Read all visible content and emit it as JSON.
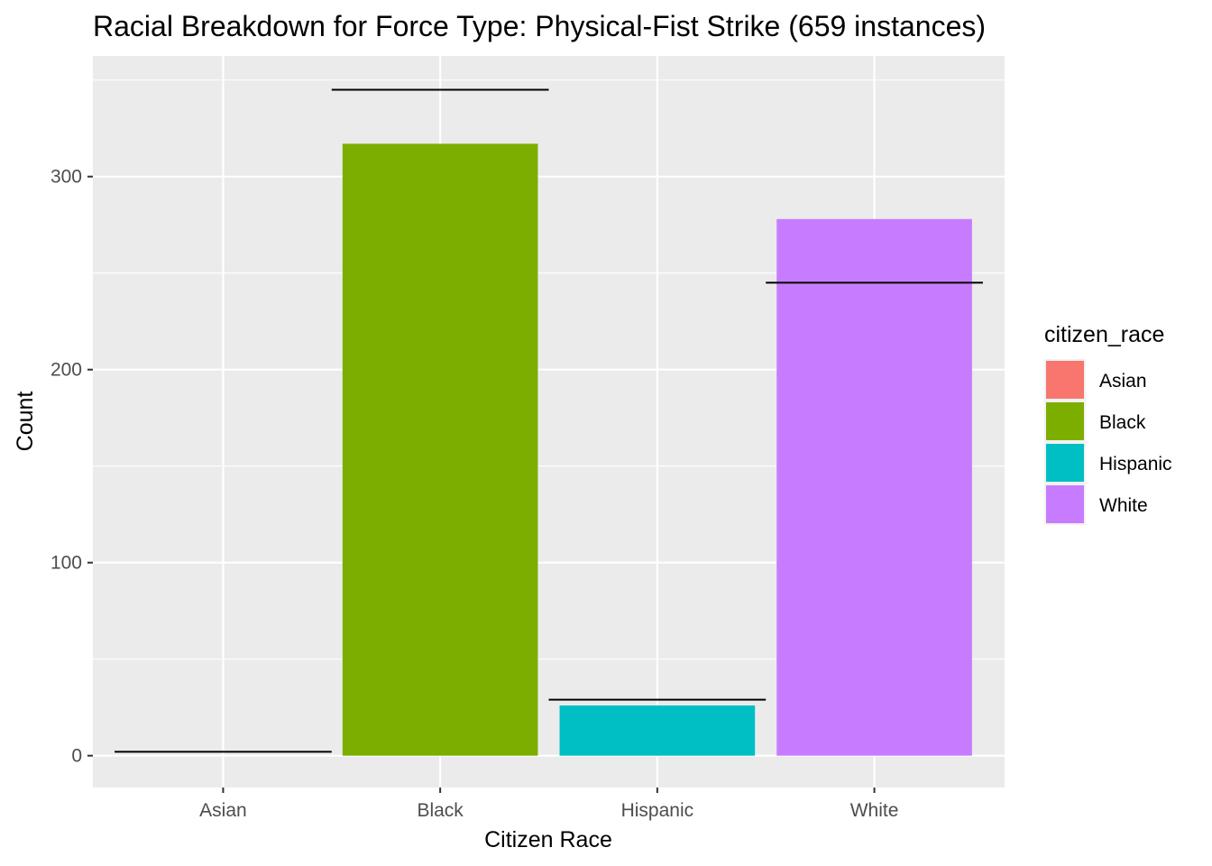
{
  "chart_data": {
    "type": "bar",
    "title": "Racial Breakdown for Force Type: Physical-Fist Strike (659 instances)",
    "xlabel": "Citizen Race",
    "ylabel": "Count",
    "categories": [
      "Asian",
      "Black",
      "Hispanic",
      "White"
    ],
    "values": [
      0,
      317,
      26,
      278
    ],
    "reference_values": [
      2,
      345,
      29,
      245
    ],
    "colors": [
      "#F8766D",
      "#7CAE00",
      "#00BFC4",
      "#C77CFF"
    ],
    "yticks": [
      0,
      100,
      200,
      300
    ],
    "ylim": [
      -16.5,
      362.5
    ],
    "grid": true,
    "legend": {
      "title": "citizen_race",
      "position": "right",
      "entries": [
        "Asian",
        "Black",
        "Hispanic",
        "White"
      ]
    }
  }
}
